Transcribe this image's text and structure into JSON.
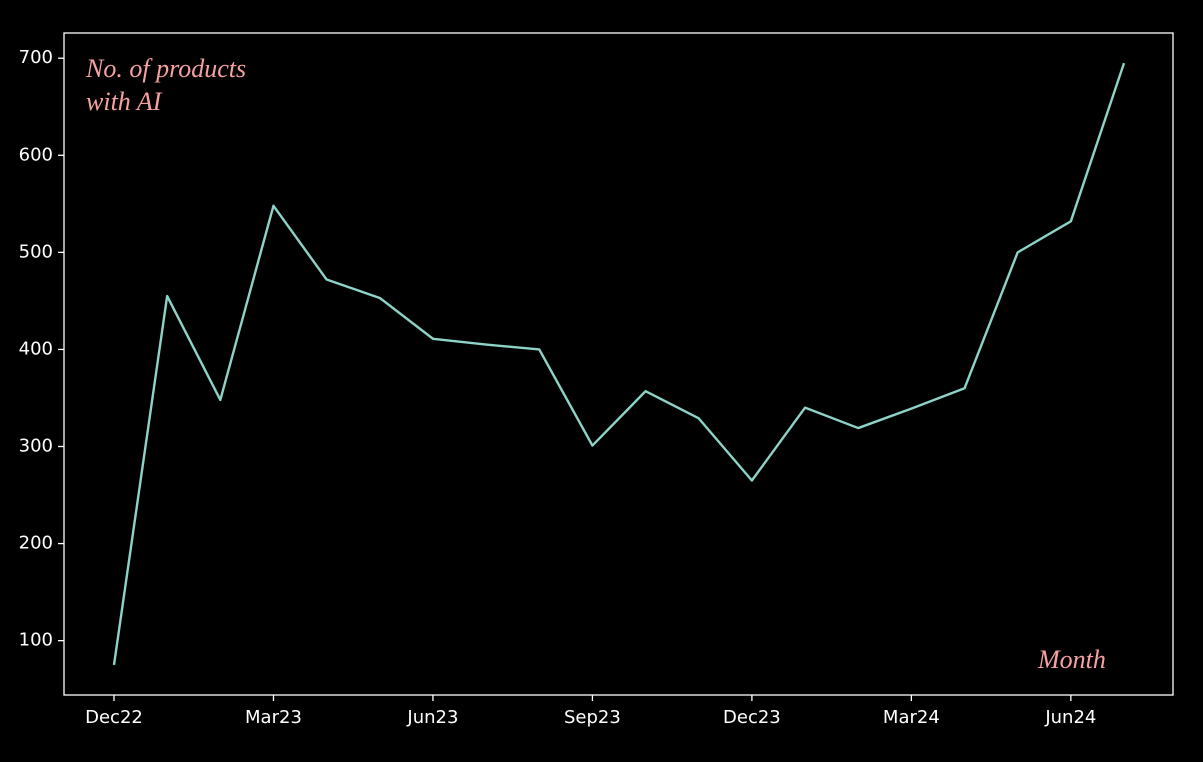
{
  "chart_data": {
    "type": "line",
    "y_label": "No. of products with AI",
    "x_label": "Month",
    "categories": [
      "Dec22",
      null,
      null,
      "Mar23",
      null,
      null,
      "Jun23",
      null,
      null,
      "Sep23",
      null,
      null,
      "Dec23",
      null,
      null,
      "Mar24",
      null,
      null,
      "Jun24",
      null
    ],
    "values": [
      75,
      455,
      348,
      548,
      472,
      453,
      411,
      405,
      400,
      301,
      357,
      329,
      265,
      340,
      319,
      339,
      360,
      500,
      532,
      695
    ],
    "color": "#8dd3c7",
    "ylim": [
      44,
      726
    ],
    "yticks": [
      100,
      200,
      300,
      400,
      500,
      600,
      700
    ],
    "grid": false
  }
}
